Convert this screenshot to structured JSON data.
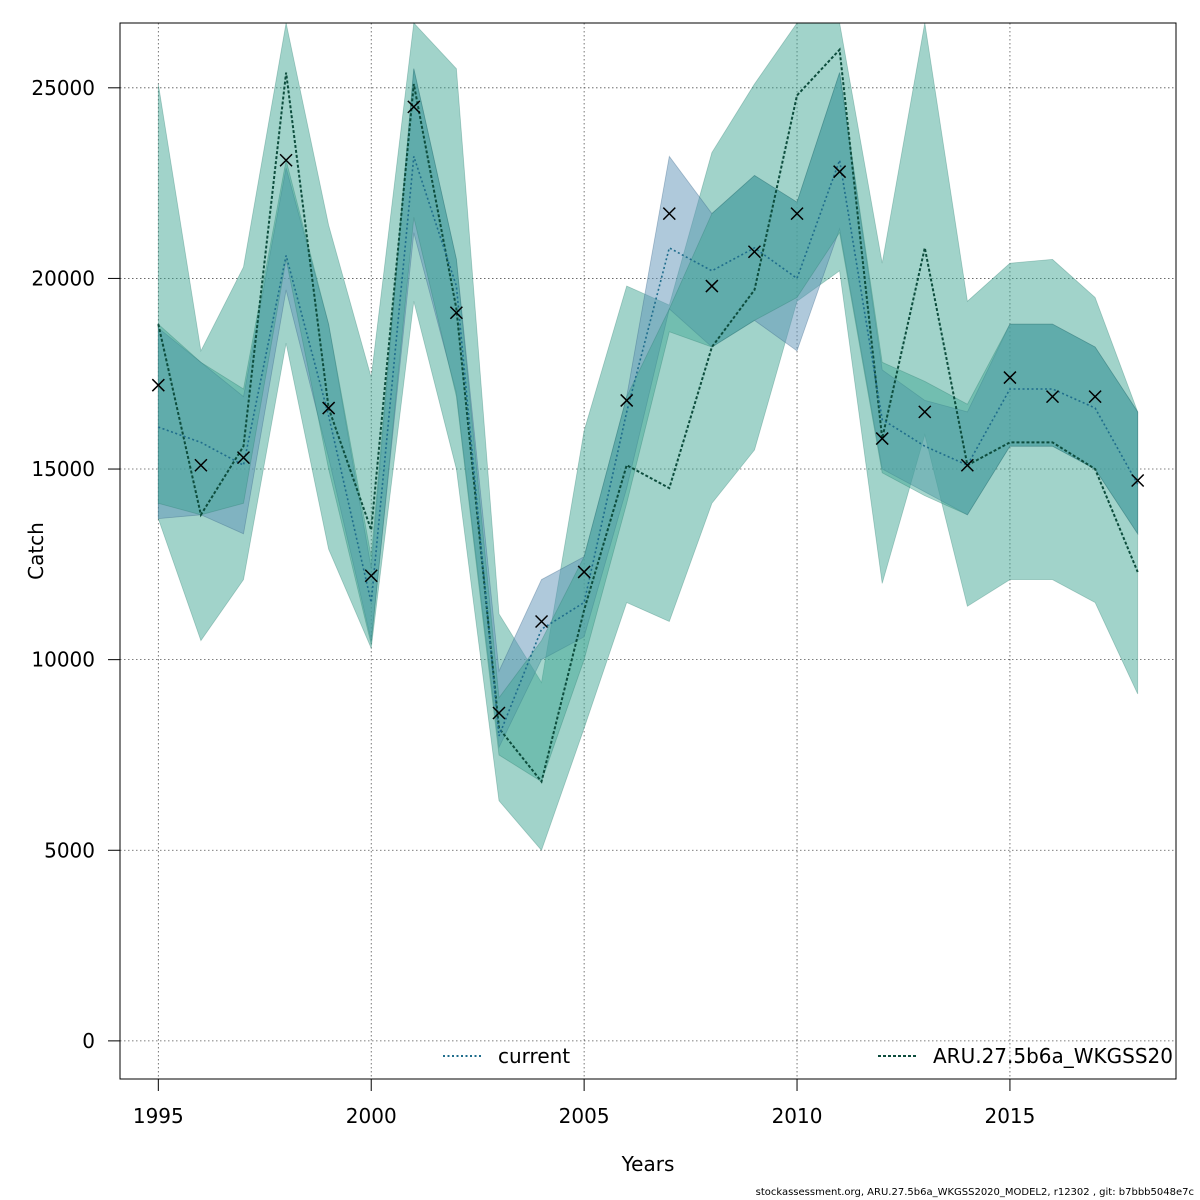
{
  "chart_data": {
    "type": "line",
    "xlabel": "Years",
    "ylabel": "Catch",
    "xlim": [
      1994.1,
      2018.9
    ],
    "ylim": [
      -1000,
      26700
    ],
    "xticks": [
      1995,
      2000,
      2005,
      2010,
      2015
    ],
    "yticks": [
      0,
      5000,
      10000,
      15000,
      20000,
      25000
    ],
    "grid": true,
    "legend_placement": "bottom",
    "x": [
      1995,
      1996,
      1997,
      1998,
      1999,
      2000,
      2001,
      2002,
      2003,
      2004,
      2005,
      2006,
      2007,
      2008,
      2009,
      2010,
      2011,
      2012,
      2013,
      2014,
      2015,
      2016,
      2017,
      2018
    ],
    "observed": {
      "marker": "x",
      "values": [
        17200,
        15100,
        15300,
        23100,
        16600,
        12200,
        24500,
        19100,
        8600,
        11000,
        12300,
        16800,
        21700,
        19800,
        20700,
        21700,
        22800,
        15800,
        16500,
        15100,
        17400,
        16900,
        16900,
        14700
      ]
    },
    "series": [
      {
        "name": "current",
        "color": "#1f6d8c",
        "band_color": "#5f93b8",
        "values": [
          16100,
          15700,
          15100,
          20600,
          16400,
          11500,
          23200,
          19800,
          8000,
          10800,
          11500,
          16500,
          20800,
          20200,
          20800,
          20000,
          23100,
          16300,
          15600,
          15100,
          17100,
          17100,
          16600,
          14600
        ],
        "band_inner_low": [
          13700,
          13800,
          13300,
          19700,
          15300,
          10500,
          21200,
          17000,
          7700,
          10000,
          10600,
          14500,
          19200,
          18200,
          18900,
          18100,
          21300,
          15000,
          14400,
          13800,
          15600,
          15600,
          15000,
          13300
        ],
        "band_inner_high": [
          18700,
          17800,
          16900,
          22900,
          18800,
          12400,
          25500,
          20500,
          9700,
          12100,
          12700,
          16900,
          23200,
          21700,
          22700,
          22000,
          25400,
          17600,
          16800,
          16500,
          18800,
          18800,
          18200,
          16500
        ]
      },
      {
        "name": "ARU.27.5b6a_WKGSS20",
        "color": "#0d4d3d",
        "band_color": "#3aa390",
        "values": [
          18800,
          13800,
          15600,
          25400,
          16600,
          13400,
          25100,
          19200,
          8200,
          6800,
          11300,
          15100,
          14500,
          18200,
          19700,
          24800,
          26000,
          15800,
          20800,
          15100,
          15700,
          15700,
          15000,
          12300
        ],
        "band_inner_low": [
          14100,
          13800,
          14100,
          20500,
          15000,
          10400,
          21600,
          16900,
          7500,
          6800,
          10000,
          14100,
          18600,
          18200,
          18900,
          19500,
          21200,
          14900,
          14300,
          13800,
          15600,
          15600,
          15000,
          13300
        ],
        "band_inner_high": [
          18800,
          17800,
          17100,
          23100,
          18800,
          12700,
          25500,
          20500,
          9000,
          10500,
          12700,
          16900,
          19200,
          21700,
          22700,
          22000,
          25400,
          17800,
          17300,
          16700,
          18800,
          18800,
          18200,
          16500
        ],
        "band_outer_low": [
          13700,
          10500,
          12100,
          18300,
          12900,
          10300,
          19400,
          15000,
          6300,
          5000,
          8200,
          11500,
          11000,
          14100,
          15500,
          19400,
          20200,
          12000,
          15900,
          11400,
          12100,
          12100,
          11500,
          9100
        ],
        "band_outer_high": [
          25100,
          18100,
          20300,
          26700,
          21400,
          17400,
          26700,
          25500,
          11200,
          9400,
          16000,
          19800,
          19300,
          23300,
          25100,
          26700,
          26700,
          20400,
          26700,
          19400,
          20400,
          20500,
          19500,
          16500
        ]
      }
    ]
  },
  "footer_text": "stockassessment.org, ARU.27.5b6a_WKGSS2020_MODEL2, r12302 , git: b7bbb5048e7c"
}
